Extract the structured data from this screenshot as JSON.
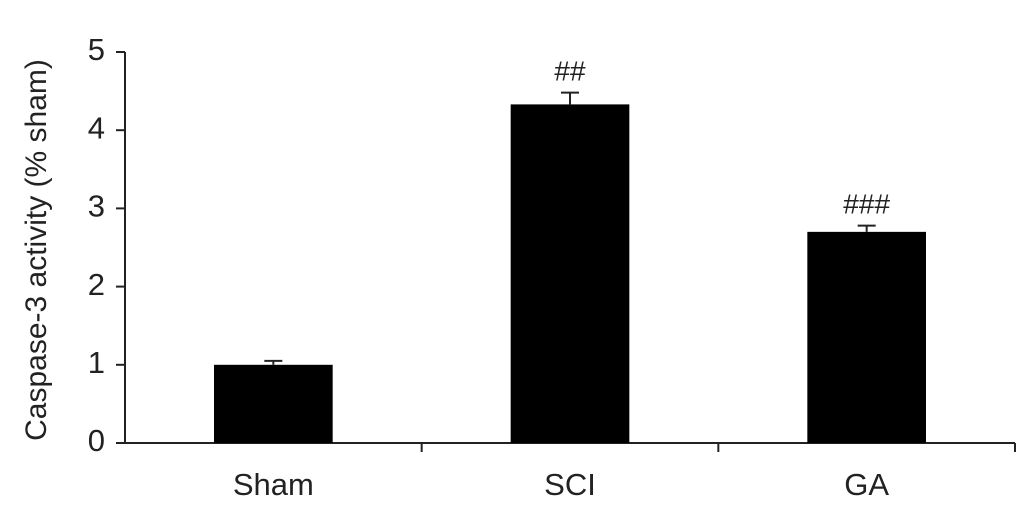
{
  "chart_data": {
    "type": "bar",
    "y_label": "Caspase-3 activity (% sham)",
    "categories": [
      "Sham",
      "SCI",
      "GA"
    ],
    "values": [
      1.0,
      4.33,
      2.7
    ],
    "errors": [
      0.05,
      0.15,
      0.08
    ],
    "annotations": [
      null,
      "##",
      "###"
    ],
    "color": "#000000",
    "ylim": [
      0,
      5
    ],
    "yticks": [
      0,
      1,
      2,
      3,
      4,
      5
    ],
    "grid": false
  }
}
